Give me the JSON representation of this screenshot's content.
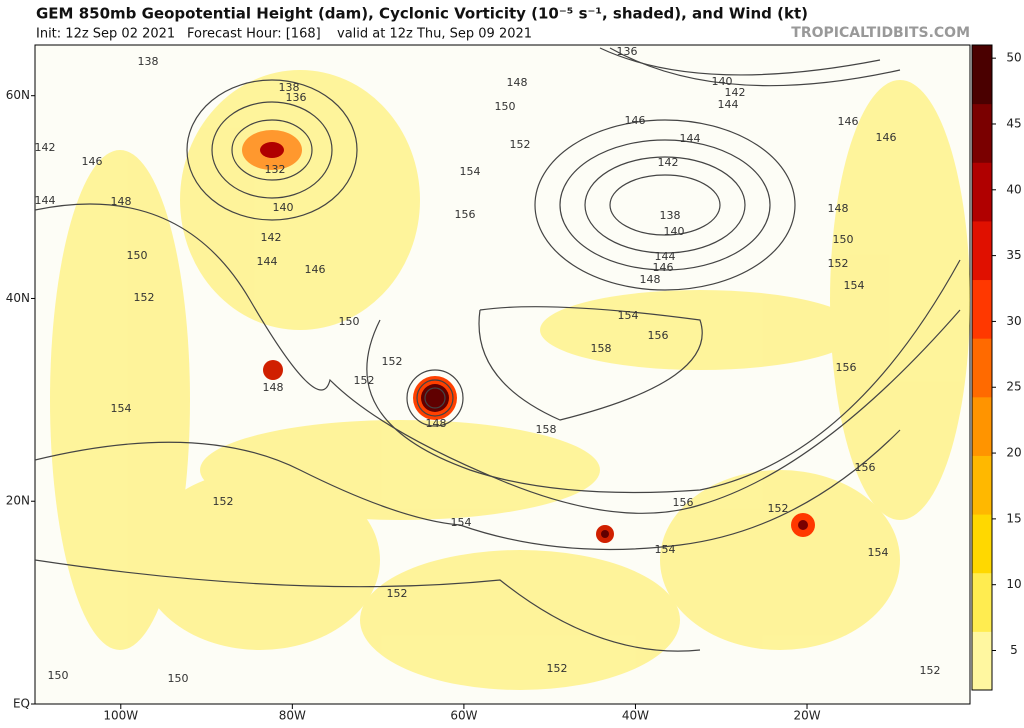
{
  "header": {
    "title": "GEM 850mb Geopotential Height (dam), Cyclonic Vorticity (10⁻⁵ s⁻¹, shaded), and Wind (kt)",
    "init": "Init: 12z Sep 02 2021",
    "forecast": "Forecast Hour: [168]",
    "valid": "valid at 12z Thu, Sep 09 2021",
    "source": "TROPICALTIDBITS.COM"
  },
  "map": {
    "xlim": [
      -110,
      -1
    ],
    "ylim": [
      0,
      65
    ],
    "xticks": [
      {
        "value": -100,
        "label": "100W"
      },
      {
        "value": -80,
        "label": "80W"
      },
      {
        "value": -60,
        "label": "60W"
      },
      {
        "value": -40,
        "label": "40W"
      },
      {
        "value": -20,
        "label": "20W"
      }
    ],
    "yticks": [
      {
        "value": 60,
        "label": "60N"
      },
      {
        "value": 40,
        "label": "40N"
      },
      {
        "value": 20,
        "label": "20N"
      },
      {
        "value": 0,
        "label": "EQ"
      }
    ],
    "contour_labels": [
      136,
      138,
      148,
      140,
      142,
      144,
      150,
      138,
      136,
      146,
      146,
      146,
      142,
      152,
      144,
      146,
      142,
      132,
      154,
      144,
      148,
      140,
      156,
      138,
      148,
      140,
      142,
      150,
      144,
      144,
      146,
      152,
      150,
      148,
      146,
      154,
      152,
      154,
      150,
      156,
      158,
      152,
      148,
      152,
      156,
      154,
      148,
      158,
      156,
      152,
      156,
      152,
      154,
      154,
      154,
      152,
      152,
      150,
      150,
      152
    ]
  },
  "colorbar": {
    "lim": [
      2,
      51
    ],
    "ticks": [
      5,
      10,
      15,
      20,
      25,
      30,
      35,
      40,
      45,
      50
    ],
    "colors": [
      "#fff7a0",
      "#ffec50",
      "#ffd800",
      "#ffb800",
      "#ff9400",
      "#ff6a00",
      "#ff3800",
      "#e01000",
      "#b00000",
      "#7a0000",
      "#4a0000"
    ]
  }
}
